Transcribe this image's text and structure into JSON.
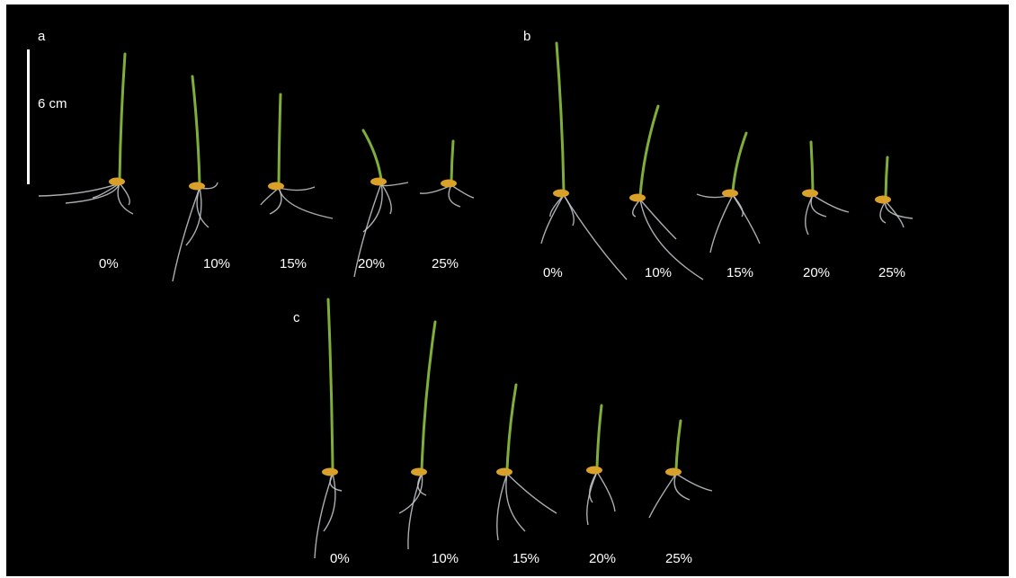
{
  "panels": {
    "a": {
      "letter": "a",
      "labels": [
        "0%",
        "10%",
        "15%",
        "20%",
        "25%"
      ]
    },
    "b": {
      "letter": "b",
      "labels": [
        "0%",
        "10%",
        "15%",
        "20%",
        "25%"
      ]
    },
    "c": {
      "letter": "c",
      "labels": [
        "0%",
        "10%",
        "15%",
        "20%",
        "25%"
      ]
    }
  },
  "scale_bar": {
    "label": "6 cm"
  },
  "colors": {
    "background": "#000000",
    "shoot": "#7fae3a",
    "seed": "#d9a12a",
    "root": "#c8cdd0",
    "text": "#ffffff"
  }
}
